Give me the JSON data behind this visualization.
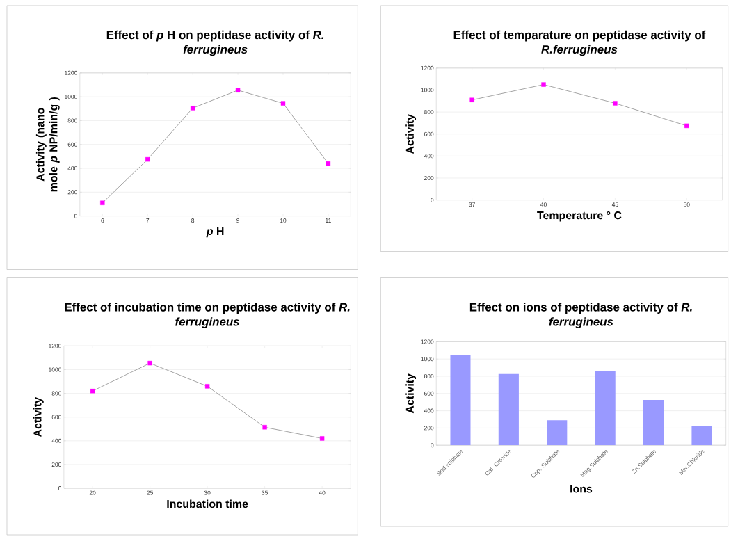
{
  "chart_data": [
    {
      "type": "line",
      "title": "Effect of *p* H on peptidase activity of *R. ferrugineus*",
      "xlabel": "*p* H",
      "ylabel": "Activity (nano mole *p* NP/min/g )",
      "categories": [
        "6",
        "7",
        "8",
        "9",
        "10",
        "11"
      ],
      "values": [
        110,
        475,
        905,
        1055,
        945,
        440
      ],
      "color": "#ff00ff",
      "marker": "square",
      "ylim": [
        0,
        1200
      ],
      "yticks": [
        0,
        200,
        400,
        600,
        800,
        1000,
        1200
      ],
      "grid": "y"
    },
    {
      "type": "line",
      "title": "Effect of temparature on peptidase activity of *R.ferrugineus*",
      "xlabel": "Temperature ° C",
      "ylabel": "Activity",
      "categories": [
        "37",
        "40",
        "45",
        "50"
      ],
      "values": [
        910,
        1050,
        880,
        675
      ],
      "color": "#ff00ff",
      "marker": "square",
      "ylim": [
        0,
        1200
      ],
      "yticks": [
        0,
        200,
        400,
        600,
        800,
        1000,
        1200
      ],
      "grid": "y"
    },
    {
      "type": "line",
      "title": "Effect of incubation time on peptidase activity of *R. ferrugineus*",
      "xlabel": "Incubation time",
      "ylabel": "Activity",
      "categories": [
        "20",
        "25",
        "30",
        "35",
        "40"
      ],
      "values": [
        820,
        1055,
        860,
        515,
        420
      ],
      "color": "#ff00ff",
      "marker": "square",
      "ylim": [
        0,
        1200
      ],
      "yticks": [
        0,
        200,
        400,
        600,
        800,
        1000,
        1200
      ],
      "grid": "y"
    },
    {
      "type": "bar",
      "title": "Effect on ions of peptidase activity of *R. ferrugineus*",
      "xlabel": "Ions",
      "ylabel": "Activity",
      "categories": [
        "Sod.sulphate",
        "Cal. Chloride",
        "Cop. Sulphate",
        "Mag.Sulphate",
        "Zn.Sulphate",
        "Mer.Chloride"
      ],
      "values": [
        1045,
        825,
        290,
        860,
        525,
        220
      ],
      "color": "#9999ff",
      "ylim": [
        0,
        1200
      ],
      "yticks": [
        0,
        200,
        400,
        600,
        800,
        1000,
        1200
      ],
      "grid": "y"
    }
  ]
}
